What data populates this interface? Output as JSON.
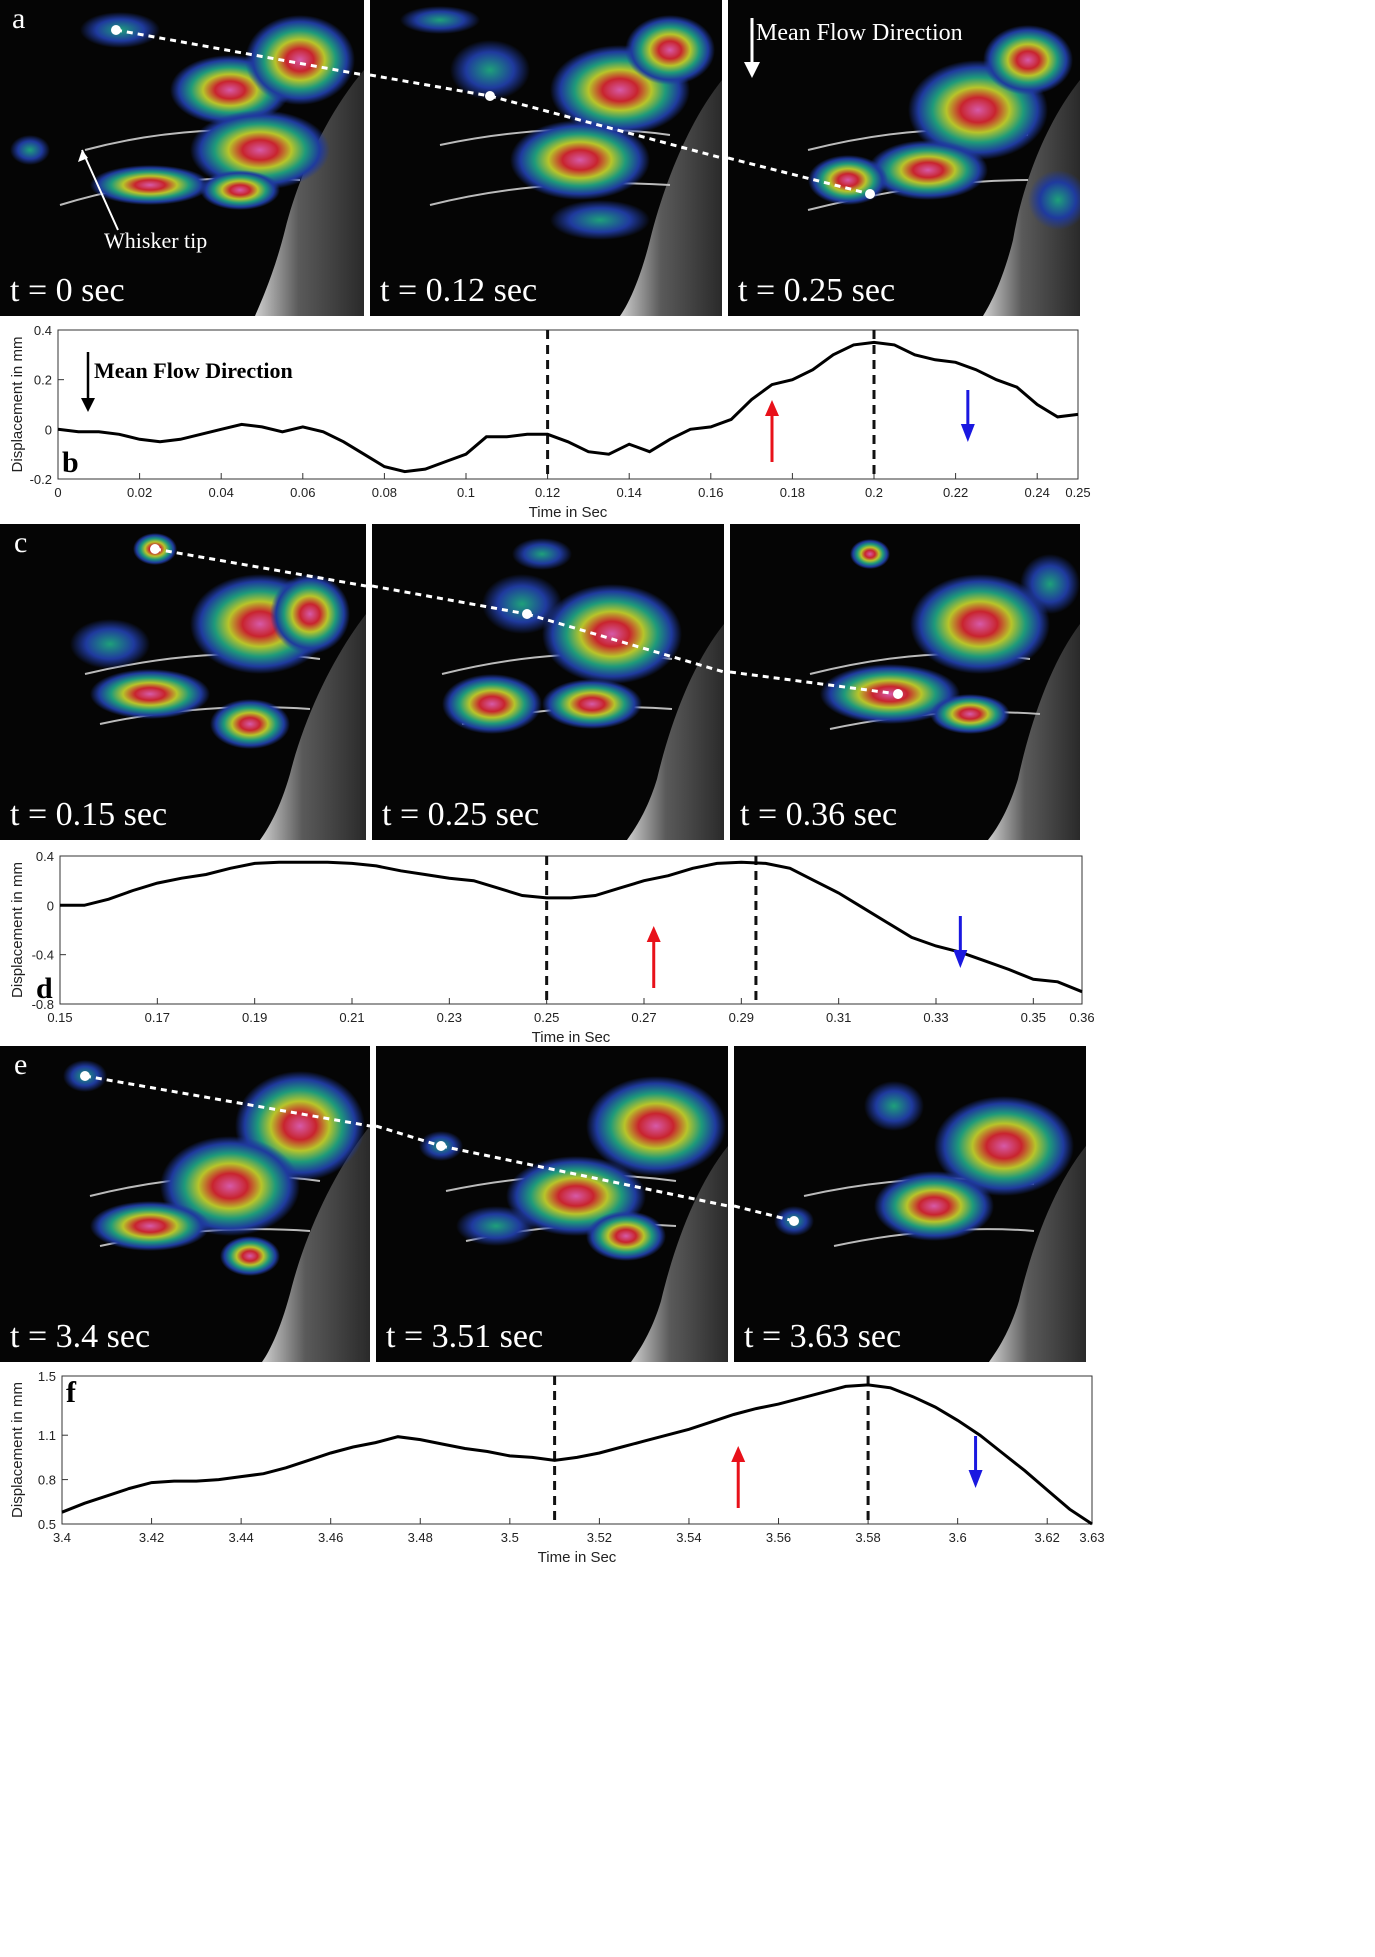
{
  "figure": {
    "rows": [
      {
        "letter": "a",
        "frames": [
          {
            "time": "t = 0 sec"
          },
          {
            "time": "t = 0.12 sec"
          },
          {
            "time": "t = 0.25 sec"
          }
        ],
        "annotations": {
          "flow": "Mean Flow Direction",
          "whisker": "Whisker tip"
        }
      },
      {
        "letter": "c",
        "frames": [
          {
            "time": "t = 0.15 sec"
          },
          {
            "time": "t = 0.25 sec"
          },
          {
            "time": "t = 0.36 sec"
          }
        ]
      },
      {
        "letter": "e",
        "frames": [
          {
            "time": "t = 3.4 sec"
          },
          {
            "time": "t = 3.51 sec"
          },
          {
            "time": "t = 3.63 sec"
          }
        ]
      }
    ]
  },
  "chart_data": [
    {
      "type": "line",
      "letter": "b",
      "xlabel": "Time in Sec",
      "ylabel": "Displacement in mm",
      "annotation": "Mean Flow Direction",
      "xlim": [
        0,
        0.25
      ],
      "ylim": [
        -0.2,
        0.4
      ],
      "xticks": [
        "0",
        "0.02",
        "0.04",
        "0.06",
        "0.08",
        "0.1",
        "0.12",
        "0.14",
        "0.16",
        "0.18",
        "0.2",
        "0.22",
        "0.24",
        "0.25"
      ],
      "xtick_values": [
        0,
        0.02,
        0.04,
        0.06,
        0.08,
        0.1,
        0.12,
        0.14,
        0.16,
        0.18,
        0.2,
        0.22,
        0.24,
        0.25
      ],
      "yticks": [
        "0.4",
        "0.2",
        "0",
        "-0.2"
      ],
      "ytick_values": [
        0.4,
        0.2,
        0,
        -0.2
      ],
      "vlines": [
        0.12,
        0.2
      ],
      "arrows": [
        {
          "x": 0.175,
          "direction": "up",
          "color": "#e8111a"
        },
        {
          "x": 0.223,
          "direction": "down",
          "color": "#1a18e0"
        }
      ],
      "x": [
        0,
        0.005,
        0.01,
        0.015,
        0.02,
        0.025,
        0.03,
        0.035,
        0.04,
        0.045,
        0.05,
        0.055,
        0.06,
        0.065,
        0.07,
        0.075,
        0.08,
        0.085,
        0.09,
        0.095,
        0.1,
        0.105,
        0.11,
        0.115,
        0.12,
        0.125,
        0.13,
        0.135,
        0.14,
        0.145,
        0.15,
        0.155,
        0.16,
        0.165,
        0.17,
        0.175,
        0.18,
        0.185,
        0.19,
        0.195,
        0.2,
        0.205,
        0.21,
        0.215,
        0.22,
        0.225,
        0.23,
        0.235,
        0.24,
        0.245,
        0.25
      ],
      "y": [
        0,
        -0.01,
        -0.01,
        -0.02,
        -0.04,
        -0.05,
        -0.04,
        -0.02,
        0.0,
        0.02,
        0.01,
        -0.01,
        0.01,
        -0.01,
        -0.05,
        -0.1,
        -0.15,
        -0.17,
        -0.16,
        -0.13,
        -0.1,
        -0.03,
        -0.03,
        -0.02,
        -0.02,
        -0.05,
        -0.09,
        -0.1,
        -0.06,
        -0.09,
        -0.04,
        0.0,
        0.01,
        0.04,
        0.12,
        0.18,
        0.2,
        0.24,
        0.3,
        0.34,
        0.35,
        0.34,
        0.3,
        0.28,
        0.27,
        0.24,
        0.2,
        0.17,
        0.1,
        0.05,
        0.06
      ]
    },
    {
      "type": "line",
      "letter": "d",
      "xlabel": "Time in Sec",
      "ylabel": "Displacement in mm",
      "xlim": [
        0.15,
        0.36
      ],
      "ylim": [
        -0.8,
        0.4
      ],
      "xticks": [
        "0.15",
        "0.17",
        "0.19",
        "0.21",
        "0.23",
        "0.25",
        "0.27",
        "0.29",
        "0.31",
        "0.33",
        "0.35",
        "0.36"
      ],
      "xtick_values": [
        0.15,
        0.17,
        0.19,
        0.21,
        0.23,
        0.25,
        0.27,
        0.29,
        0.31,
        0.33,
        0.35,
        0.36
      ],
      "yticks": [
        "0.4",
        "0",
        "-0.4",
        "-0.8"
      ],
      "ytick_values": [
        0.4,
        0,
        -0.4,
        -0.8
      ],
      "vlines": [
        0.25,
        0.293
      ],
      "arrows": [
        {
          "x": 0.272,
          "direction": "up",
          "color": "#e8111a"
        },
        {
          "x": 0.335,
          "direction": "down",
          "color": "#1a18e0"
        }
      ],
      "x": [
        0.15,
        0.155,
        0.16,
        0.165,
        0.17,
        0.175,
        0.18,
        0.185,
        0.19,
        0.195,
        0.2,
        0.205,
        0.21,
        0.215,
        0.22,
        0.225,
        0.23,
        0.235,
        0.24,
        0.245,
        0.25,
        0.255,
        0.26,
        0.265,
        0.27,
        0.275,
        0.28,
        0.285,
        0.29,
        0.295,
        0.3,
        0.305,
        0.31,
        0.315,
        0.32,
        0.325,
        0.33,
        0.335,
        0.34,
        0.345,
        0.35,
        0.355,
        0.36
      ],
      "y": [
        0,
        0.0,
        0.05,
        0.12,
        0.18,
        0.22,
        0.25,
        0.3,
        0.34,
        0.35,
        0.35,
        0.35,
        0.34,
        0.32,
        0.28,
        0.25,
        0.22,
        0.2,
        0.14,
        0.08,
        0.06,
        0.06,
        0.08,
        0.14,
        0.2,
        0.24,
        0.3,
        0.34,
        0.35,
        0.34,
        0.3,
        0.2,
        0.1,
        -0.02,
        -0.14,
        -0.26,
        -0.33,
        -0.38,
        -0.45,
        -0.52,
        -0.6,
        -0.62,
        -0.7
      ]
    },
    {
      "type": "line",
      "letter": "f",
      "xlabel": "Time in Sec",
      "ylabel": "Displacement in mm",
      "xlim": [
        3.4,
        3.63
      ],
      "ylim": [
        0.5,
        1.5
      ],
      "xticks": [
        "3.4",
        "3.42",
        "3.44",
        "3.46",
        "3.48",
        "3.5",
        "3.52",
        "3.54",
        "3.56",
        "3.58",
        "3.6",
        "3.62",
        "3.63"
      ],
      "xtick_values": [
        3.4,
        3.42,
        3.44,
        3.46,
        3.48,
        3.5,
        3.52,
        3.54,
        3.56,
        3.58,
        3.6,
        3.62,
        3.63
      ],
      "yticks": [
        "1.5",
        "1.1",
        "0.8",
        "0.5"
      ],
      "ytick_values": [
        1.5,
        1.1,
        0.8,
        0.5
      ],
      "vlines": [
        3.51,
        3.58
      ],
      "arrows": [
        {
          "x": 3.551,
          "direction": "up",
          "color": "#e8111a"
        },
        {
          "x": 3.604,
          "direction": "down",
          "color": "#1a18e0"
        }
      ],
      "x": [
        3.4,
        3.405,
        3.41,
        3.415,
        3.42,
        3.425,
        3.43,
        3.435,
        3.44,
        3.445,
        3.45,
        3.455,
        3.46,
        3.465,
        3.47,
        3.475,
        3.48,
        3.485,
        3.49,
        3.495,
        3.5,
        3.505,
        3.51,
        3.515,
        3.52,
        3.525,
        3.53,
        3.535,
        3.54,
        3.545,
        3.55,
        3.555,
        3.56,
        3.565,
        3.57,
        3.575,
        3.58,
        3.585,
        3.59,
        3.595,
        3.6,
        3.605,
        3.61,
        3.615,
        3.62,
        3.625,
        3.63
      ],
      "y": [
        0.58,
        0.64,
        0.69,
        0.74,
        0.78,
        0.79,
        0.79,
        0.8,
        0.82,
        0.84,
        0.88,
        0.93,
        0.98,
        1.02,
        1.05,
        1.09,
        1.07,
        1.04,
        1.01,
        0.99,
        0.96,
        0.95,
        0.93,
        0.95,
        0.98,
        1.02,
        1.06,
        1.1,
        1.14,
        1.19,
        1.24,
        1.28,
        1.31,
        1.35,
        1.39,
        1.43,
        1.44,
        1.42,
        1.36,
        1.29,
        1.2,
        1.1,
        0.98,
        0.86,
        0.73,
        0.6,
        0.5
      ]
    }
  ]
}
